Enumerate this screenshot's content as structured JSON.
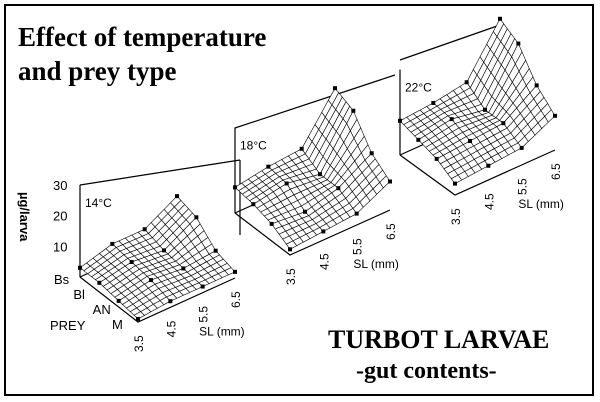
{
  "title_line1": "Effect of temperature",
  "title_line2": "and prey type",
  "caption_line1": "TURBOT LARVAE",
  "caption_line2": "-gut contents-",
  "colors": {
    "ink": "#000000",
    "background": "#ffffff"
  },
  "chart_data": [
    {
      "type": "surface",
      "title": "14°C",
      "zlabel": "µg/larva",
      "zticks": [
        "30",
        "20",
        "10"
      ],
      "zlim": [
        0,
        30
      ],
      "xlabel": "SL (mm)",
      "x": [
        "3.5",
        "4.5",
        "5.5",
        "6.5"
      ],
      "ylabel": "PREY",
      "y": [
        "Bs",
        "Bl",
        "AN",
        "M"
      ],
      "z": [
        [
          3,
          6,
          6,
          12
        ],
        [
          3,
          5,
          4,
          10
        ],
        [
          2,
          4,
          3,
          4
        ],
        [
          1,
          2,
          2,
          2
        ]
      ]
    },
    {
      "type": "surface",
      "title": "18°C",
      "zlim": [
        0,
        30
      ],
      "xlabel": "SL (mm)",
      "x": [
        "3.5",
        "4.5",
        "5.5",
        "6.5"
      ],
      "y": [
        "Bs",
        "Bl",
        "AN",
        "M"
      ],
      "z": [
        [
          9,
          11,
          12,
          28
        ],
        [
          8,
          10,
          8,
          25
        ],
        [
          6,
          5,
          8,
          15
        ],
        [
          2,
          3,
          4,
          10
        ]
      ]
    },
    {
      "type": "surface",
      "title": "22°C",
      "zlim": [
        0,
        30
      ],
      "xlabel": "SL (mm)",
      "x": [
        "3.5",
        "4.5",
        "5.5",
        "6.5"
      ],
      "y": [
        "Bs",
        "Bl",
        "AN",
        "M"
      ],
      "z": [
        [
          12,
          13,
          15,
          32
        ],
        [
          10,
          12,
          10,
          28
        ],
        [
          8,
          9,
          10,
          18
        ],
        [
          4,
          5,
          6,
          12
        ]
      ]
    }
  ]
}
